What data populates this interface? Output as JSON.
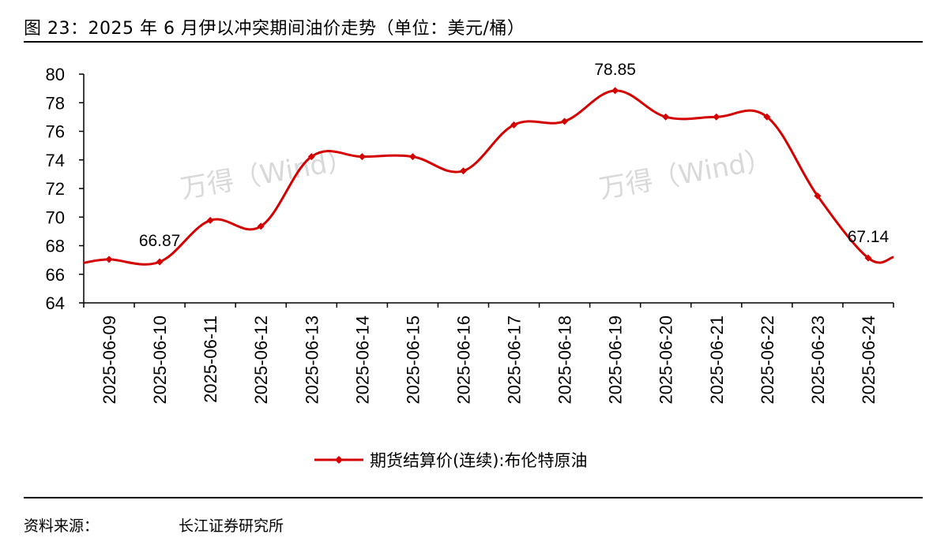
{
  "figure": {
    "title": "图 23：2025 年 6 月伊以冲突期间油价走势（单位：美元/桶）",
    "source_label": "资料来源：",
    "source_org": "长江证券研究所",
    "watermark": "万得（Wind）"
  },
  "colors": {
    "series": "#d40000",
    "axis": "#000000",
    "watermark": "#d9d9d9"
  },
  "chart_data": {
    "type": "line",
    "title": "",
    "xlabel": "",
    "ylabel": "",
    "ylim": [
      64,
      80
    ],
    "yticks": [
      64,
      66,
      68,
      70,
      72,
      74,
      76,
      78,
      80
    ],
    "grid": false,
    "legend_position": "bottom",
    "categories": [
      "2025-06-09",
      "2025-06-10",
      "2025-06-11",
      "2025-06-12",
      "2025-06-13",
      "2025-06-14",
      "2025-06-15",
      "2025-06-16",
      "2025-06-17",
      "2025-06-18",
      "2025-06-19",
      "2025-06-20",
      "2025-06-21",
      "2025-06-22",
      "2025-06-23",
      "2025-06-24"
    ],
    "series": [
      {
        "name": "期货结算价(连续):布伦特原油",
        "values": [
          67.04,
          66.87,
          69.77,
          69.36,
          74.23,
          74.23,
          74.23,
          73.23,
          76.45,
          76.7,
          78.85,
          77.01,
          77.01,
          77.01,
          71.48,
          67.14
        ],
        "edge_left": 66.8,
        "edge_right": 67.2
      }
    ],
    "data_labels": [
      {
        "index": 1,
        "text": "66.87"
      },
      {
        "index": 10,
        "text": "78.85"
      },
      {
        "index": 15,
        "text": "67.14"
      }
    ]
  }
}
